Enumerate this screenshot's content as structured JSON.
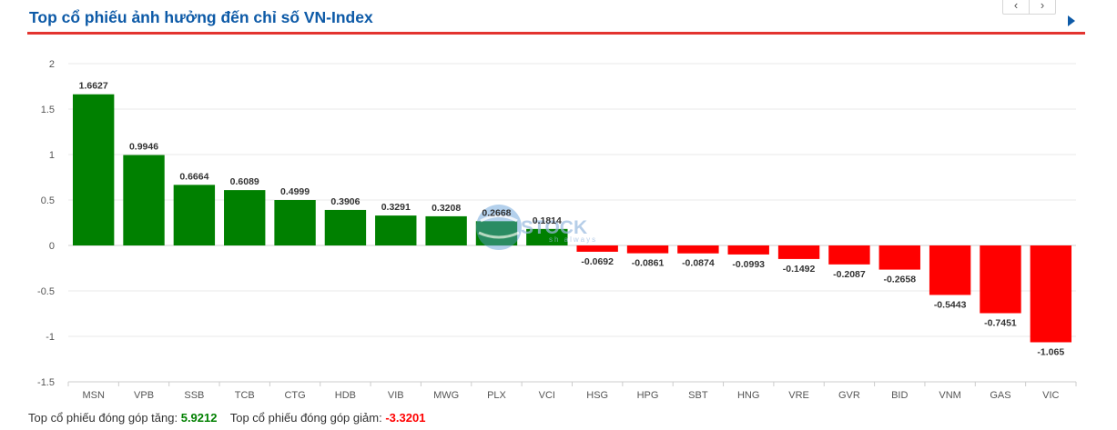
{
  "header": {
    "title": "Top cổ phiếu ảnh hưởng đến chỉ số VN-Index",
    "prev_label": "‹",
    "next_label": "›"
  },
  "watermark": {
    "text": "STOCK",
    "tagline": "sh always"
  },
  "colors": {
    "positive": "#008000",
    "negative": "#ff0000",
    "title": "#0d5aa7",
    "divider": "#e3342f"
  },
  "chart_data": {
    "type": "bar",
    "categories": [
      "MSN",
      "VPB",
      "SSB",
      "TCB",
      "CTG",
      "HDB",
      "VIB",
      "MWG",
      "PLX",
      "VCI",
      "HSG",
      "HPG",
      "SBT",
      "HNG",
      "VRE",
      "GVR",
      "BID",
      "VNM",
      "GAS",
      "VIC"
    ],
    "values": [
      1.6627,
      0.9946,
      0.6664,
      0.6089,
      0.4999,
      0.3906,
      0.3291,
      0.3208,
      0.2668,
      0.1814,
      -0.0692,
      -0.0861,
      -0.0874,
      -0.0993,
      -0.1492,
      -0.2087,
      -0.2658,
      -0.5443,
      -0.7451,
      -1.065
    ],
    "labels": [
      "1.6627",
      "0.9946",
      "0.6664",
      "0.6089",
      "0.4999",
      "0.3906",
      "0.3291",
      "0.3208",
      "0.2668",
      "0.1814",
      "-0.0692",
      "-0.0861",
      "-0.0874",
      "-0.0993",
      "-0.1492",
      "-0.2087",
      "-0.2658",
      "-0.5443",
      "-0.7451",
      "-1.065"
    ],
    "yticks": [
      2,
      1.5,
      1,
      0.5,
      0,
      -0.5,
      -1,
      -1.5
    ],
    "ytick_labels": [
      "2",
      "1.5",
      "1",
      "0.5",
      "0",
      "-0.5",
      "-1",
      "-1.5"
    ],
    "ylim": [
      -1.5,
      2
    ],
    "grid": true,
    "title": "",
    "xlabel": "",
    "ylabel": ""
  },
  "footer": {
    "gain_label": "Top cổ phiếu đóng góp tăng:",
    "gain_value": "5.9212",
    "loss_label": "Top cổ phiếu đóng góp giảm:",
    "loss_value": "-3.3201"
  }
}
